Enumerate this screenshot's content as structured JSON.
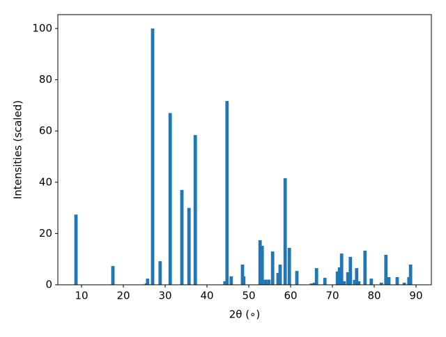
{
  "chart_data": {
    "type": "bar",
    "xlabel": "2θ (∘)",
    "ylabel": "Intensities (scaled)",
    "color": "#1f77b4",
    "x": [
      8.67,
      17.5,
      25.5,
      25.8,
      27.0,
      28.8,
      31.2,
      34.0,
      35.7,
      37.2,
      44.3,
      44.8,
      45.8,
      48.5,
      48.8,
      52.7,
      53.2,
      54.0,
      54.8,
      55.7,
      57.0,
      57.5,
      58.7,
      59.7,
      61.5,
      65.0,
      65.7,
      66.2,
      68.2,
      71.2,
      71.7,
      72.2,
      72.8,
      73.7,
      74.3,
      75.3,
      75.8,
      76.3,
      77.8,
      79.3,
      81.7,
      82.8,
      83.5,
      85.5,
      87.2,
      88.3,
      88.7
    ],
    "values": [
      27.4,
      7.3,
      0.5,
      2.4,
      100,
      9.2,
      67,
      37,
      30,
      58.4,
      1.4,
      71.7,
      3.3,
      7.9,
      3.3,
      17.4,
      15.2,
      2,
      2,
      13,
      4.6,
      7.9,
      41.6,
      14.4,
      5.4,
      0.5,
      0.8,
      6.5,
      2.7,
      5.2,
      6.8,
      12.2,
      1.4,
      4.9,
      10.9,
      1.9,
      6.5,
      1.4,
      13.3,
      2.4,
      0.8,
      11.7,
      3,
      3,
      0.8,
      3,
      7.9
    ],
    "xlim": [
      4.33,
      93.67
    ],
    "xticks": [
      10,
      20,
      30,
      40,
      50,
      60,
      70,
      80,
      90
    ],
    "ylim": [
      0,
      105.4
    ],
    "yticks": [
      0,
      20,
      40,
      60,
      80,
      100
    ]
  }
}
